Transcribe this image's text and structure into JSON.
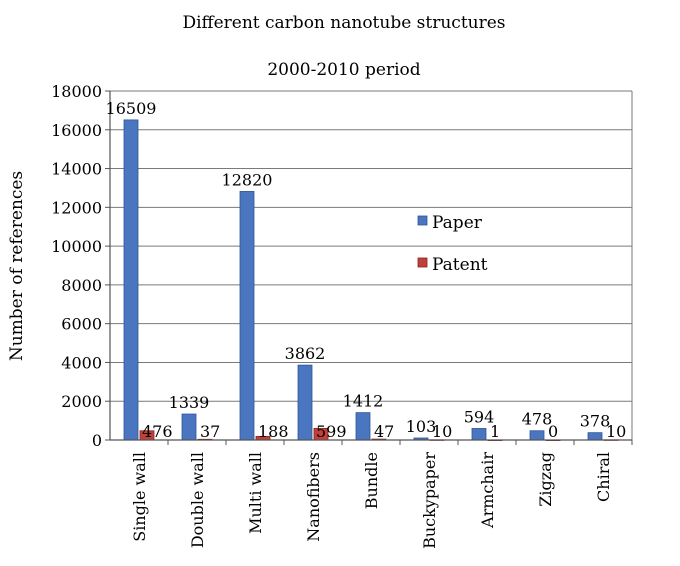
{
  "chart_data": {
    "type": "bar",
    "title": "Different carbon nanotube structures",
    "subtitle": "2000-2010 period",
    "xlabel": "",
    "ylabel": "Number of references",
    "ylim": [
      0,
      18000
    ],
    "yticks": [
      0,
      2000,
      4000,
      6000,
      8000,
      10000,
      12000,
      14000,
      16000,
      18000
    ],
    "grid": true,
    "legend_position": "right",
    "categories": [
      "Single wall",
      "Double wall",
      "Multi wall",
      "Nanofibers",
      "Bundle",
      "Buckypaper",
      "Armchair",
      "Zigzag",
      "Chiral"
    ],
    "series": [
      {
        "name": "Paper",
        "color": "#4a76c0",
        "values": [
          16509,
          1339,
          12820,
          3862,
          1412,
          103,
          594,
          478,
          378
        ]
      },
      {
        "name": "Patent",
        "color": "#c0403a",
        "values": [
          476,
          37,
          188,
          599,
          47,
          10,
          1,
          0,
          10
        ]
      }
    ]
  }
}
